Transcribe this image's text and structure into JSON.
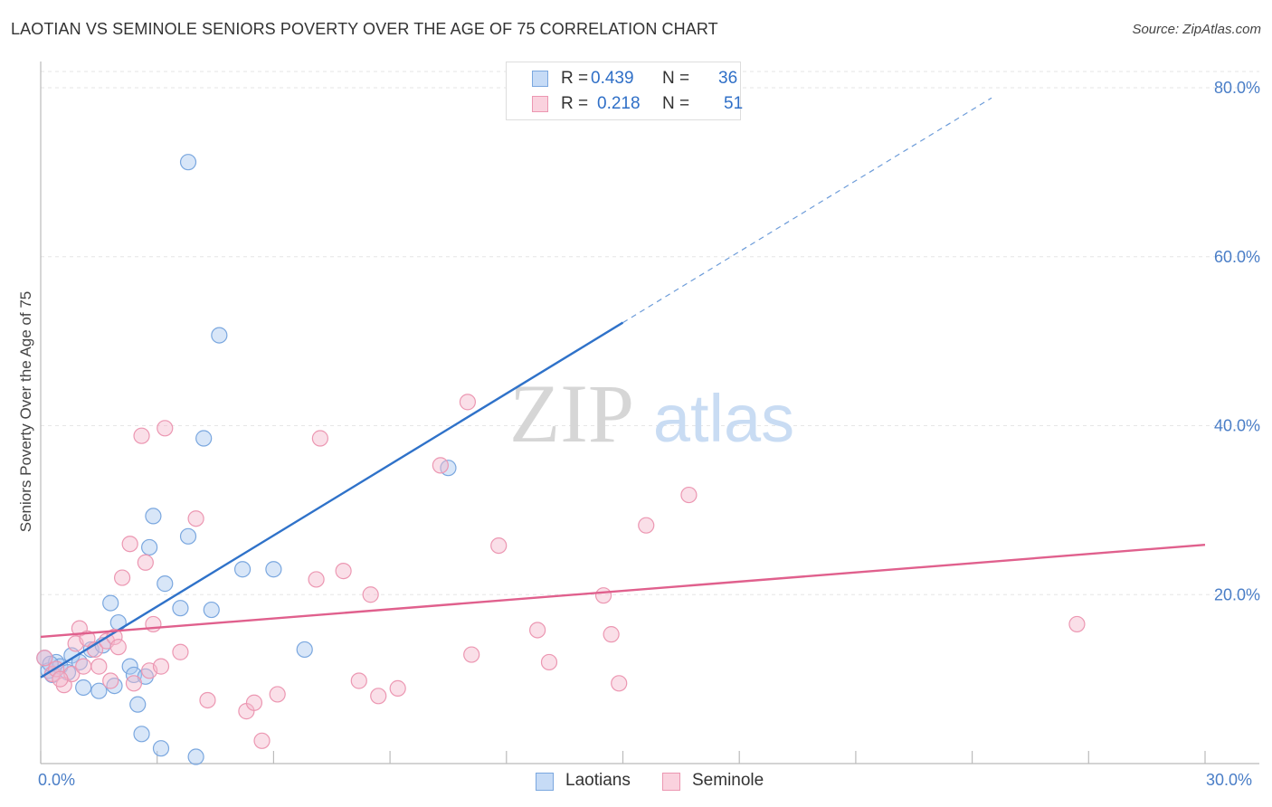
{
  "header": {
    "title": "LAOTIAN VS SEMINOLE SENIORS POVERTY OVER THE AGE OF 75 CORRELATION CHART",
    "source": "Source: ZipAtlas.com"
  },
  "watermark": {
    "part1": "ZIP",
    "part2": "atlas"
  },
  "legend": {
    "r_label": "R =",
    "n_label": "N =",
    "rows": [
      {
        "r": "0.439",
        "n": "36",
        "color": "#a8c8f0"
      },
      {
        "r": "0.218",
        "n": "51",
        "color": "#f5b8cb"
      }
    ]
  },
  "chart_data": {
    "type": "scatter",
    "title": "LAOTIAN VS SEMINOLE SENIORS POVERTY OVER THE AGE OF 75 CORRELATION CHART",
    "xlabel": "",
    "ylabel": "Seniors Poverty Over the Age of 75",
    "xlim": [
      0,
      30
    ],
    "ylim": [
      0,
      80
    ],
    "x_tick_labels": [
      "0.0%",
      "30.0%"
    ],
    "y_ticks": [
      20,
      40,
      60,
      80
    ],
    "y_tick_labels": [
      "20.0%",
      "40.0%",
      "60.0%",
      "80.0%"
    ],
    "grid": true,
    "legend_position": "top-center",
    "series": [
      {
        "name": "Laotians",
        "color": "#a8c8f0",
        "stroke": "#7aa7df",
        "line_color": "#2f72c9",
        "points": [
          [
            0.1,
            12.5
          ],
          [
            0.2,
            11.0
          ],
          [
            0.3,
            10.5
          ],
          [
            0.4,
            12.0
          ],
          [
            0.5,
            11.5
          ],
          [
            0.7,
            10.8
          ],
          [
            0.8,
            12.8
          ],
          [
            1.1,
            9.0
          ],
          [
            1.3,
            13.5
          ],
          [
            1.5,
            8.6
          ],
          [
            1.6,
            14.0
          ],
          [
            1.8,
            19.0
          ],
          [
            1.9,
            9.2
          ],
          [
            2.0,
            16.7
          ],
          [
            2.3,
            11.5
          ],
          [
            2.4,
            10.5
          ],
          [
            2.5,
            7.0
          ],
          [
            2.6,
            3.5
          ],
          [
            2.7,
            10.3
          ],
          [
            2.8,
            25.6
          ],
          [
            2.9,
            29.3
          ],
          [
            3.1,
            1.8
          ],
          [
            3.2,
            21.3
          ],
          [
            3.6,
            18.4
          ],
          [
            3.8,
            71.2
          ],
          [
            3.8,
            26.9
          ],
          [
            4.0,
            0.8
          ],
          [
            4.2,
            38.5
          ],
          [
            4.4,
            18.2
          ],
          [
            4.6,
            50.7
          ],
          [
            5.2,
            23.0
          ],
          [
            6.0,
            23.0
          ],
          [
            6.8,
            13.5
          ],
          [
            10.5,
            35.0
          ],
          [
            0.25,
            11.8
          ],
          [
            1.0,
            12.0
          ]
        ],
        "trend": {
          "x0": 0,
          "y0": 10.2,
          "x1": 15,
          "y1": 52.2,
          "dash_x1": 24.5,
          "dash_y1": 78.8
        }
      },
      {
        "name": "Seminole",
        "color": "#f5b8cb",
        "stroke": "#ec97b2",
        "line_color": "#e0608d",
        "points": [
          [
            0.1,
            12.5
          ],
          [
            0.3,
            10.6
          ],
          [
            0.4,
            11.2
          ],
          [
            0.6,
            9.3
          ],
          [
            0.8,
            10.6
          ],
          [
            0.9,
            14.2
          ],
          [
            1.0,
            16.0
          ],
          [
            1.2,
            14.8
          ],
          [
            1.4,
            13.5
          ],
          [
            1.5,
            11.5
          ],
          [
            1.7,
            14.5
          ],
          [
            1.8,
            9.8
          ],
          [
            1.9,
            15.0
          ],
          [
            2.0,
            13.8
          ],
          [
            2.1,
            22.0
          ],
          [
            2.3,
            26.0
          ],
          [
            2.4,
            9.5
          ],
          [
            2.6,
            38.8
          ],
          [
            2.7,
            23.8
          ],
          [
            2.8,
            11.0
          ],
          [
            2.9,
            16.5
          ],
          [
            3.1,
            11.5
          ],
          [
            3.2,
            39.7
          ],
          [
            3.6,
            13.2
          ],
          [
            4.0,
            29.0
          ],
          [
            4.3,
            7.5
          ],
          [
            5.3,
            6.2
          ],
          [
            5.5,
            7.2
          ],
          [
            5.7,
            2.7
          ],
          [
            6.1,
            8.2
          ],
          [
            7.1,
            21.8
          ],
          [
            7.2,
            38.5
          ],
          [
            7.8,
            22.8
          ],
          [
            8.2,
            9.8
          ],
          [
            8.5,
            20.0
          ],
          [
            8.7,
            8.0
          ],
          [
            9.2,
            8.9
          ],
          [
            10.3,
            35.3
          ],
          [
            11.0,
            42.8
          ],
          [
            11.1,
            12.9
          ],
          [
            11.8,
            25.8
          ],
          [
            12.8,
            15.8
          ],
          [
            13.1,
            12.0
          ],
          [
            14.5,
            19.9
          ],
          [
            14.7,
            15.3
          ],
          [
            14.9,
            9.5
          ],
          [
            15.6,
            28.2
          ],
          [
            16.7,
            31.8
          ],
          [
            26.7,
            16.5
          ],
          [
            0.5,
            10.0
          ],
          [
            1.1,
            11.5
          ]
        ],
        "trend": {
          "x0": 0,
          "y0": 15.0,
          "x1": 30,
          "y1": 25.9
        }
      }
    ]
  },
  "bottom_legend": [
    "Laotians",
    "Seminole"
  ]
}
